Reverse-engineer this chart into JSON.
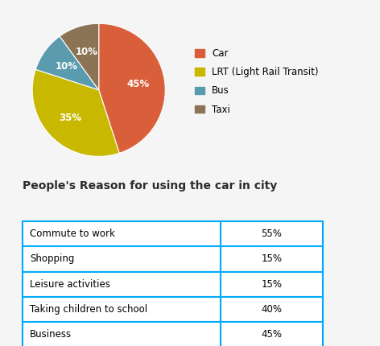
{
  "pie_labels": [
    "Car",
    "LRT (Light Rail Transit)",
    "Bus",
    "Taxi"
  ],
  "pie_values": [
    45,
    35,
    10,
    10
  ],
  "pie_colors": [
    "#d95f3b",
    "#c8b800",
    "#5b9bae",
    "#8b7355"
  ],
  "pie_label_texts": [
    "45%",
    "35%",
    "10%",
    "10%"
  ],
  "legend_labels": [
    "Car",
    "LRT (Light Rail Transit)",
    "Bus",
    "Taxi"
  ],
  "table_title": "People's Reason for using the car in city",
  "table_rows": [
    [
      "Commute to work",
      "55%"
    ],
    [
      "Shopping",
      "15%"
    ],
    [
      "Leisure activities",
      "15%"
    ],
    [
      "Taking children to school",
      "40%"
    ],
    [
      "Business",
      "45%"
    ]
  ],
  "table_border_color": "#00aaff",
  "background_color": "#f5f5f5",
  "pie_label_color": "white",
  "title_color": "#2c2c2c",
  "title_fontsize": 10,
  "table_fontsize": 8.5,
  "legend_fontsize": 8.5
}
